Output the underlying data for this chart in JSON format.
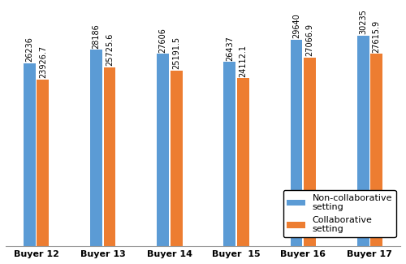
{
  "categories": [
    "Buyer 12",
    "Buyer 13",
    "Buyer 14",
    "Buyer  15",
    "Buyer 16",
    "Buyer 17"
  ],
  "non_collaborative": [
    26236,
    28186,
    27606,
    26437,
    29640,
    30235
  ],
  "collaborative": [
    23926.7,
    25725.6,
    25191.5,
    24112.1,
    27066.9,
    27615.9
  ],
  "bar_color_non": "#5B9BD5",
  "bar_color_col": "#ED7D31",
  "legend_labels": [
    "Non-collaborative\nsetting",
    "Collaborative\nsetting"
  ],
  "ylim": [
    0,
    34000
  ],
  "bar_width": 0.18,
  "label_fontsize": 7.0,
  "tick_fontsize": 8,
  "legend_fontsize": 8,
  "figsize": [
    5.0,
    3.25
  ],
  "dpi": 100
}
